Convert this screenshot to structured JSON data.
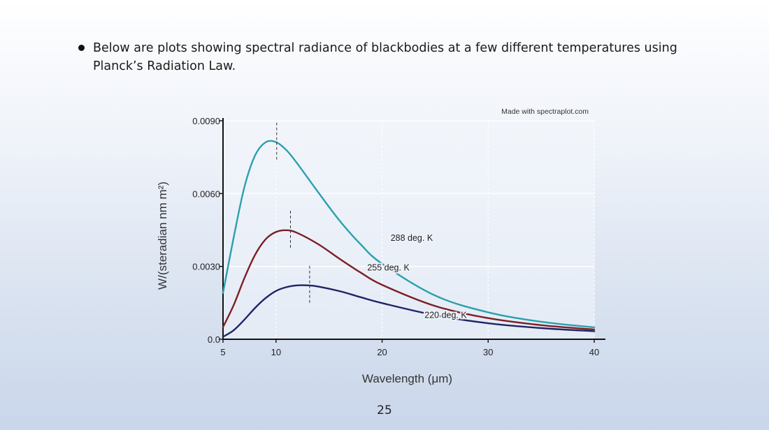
{
  "slide": {
    "bullet_text": "Below are plots showing spectral radiance of blackbodies at a few different temperatures using Planck’s Radiation Law.",
    "page_number": "25"
  },
  "chart_data": {
    "type": "line",
    "credit": "Made with spectraplot.com",
    "xlabel": "Wavelength (μm)",
    "ylabel": "W/(steradian nm m²)",
    "xlim": [
      5,
      40
    ],
    "ylim": [
      0,
      0.009
    ],
    "x_ticks": [
      5,
      10,
      20,
      30,
      40
    ],
    "y_ticks": [
      0,
      0.003,
      0.006,
      0.009
    ],
    "y_tick_labels": [
      "0.0",
      "0.0030",
      "0.0060",
      "0.0090"
    ],
    "grid": true,
    "series": [
      {
        "name": "288 deg. K",
        "color": "#2aa0ae",
        "temperature": 288,
        "peak_wavelength": 10.06,
        "x": [
          5,
          6,
          7,
          8,
          9,
          10,
          11,
          12,
          14,
          16,
          18,
          20,
          25,
          30,
          35,
          40
        ],
        "y": [
          0.00191,
          0.00418,
          0.00624,
          0.00755,
          0.00811,
          0.00812,
          0.00778,
          0.00724,
          0.00604,
          0.00488,
          0.0039,
          0.00311,
          0.0018,
          0.00111,
          0.00072,
          0.00049
        ]
      },
      {
        "name": "255 deg. K",
        "color": "#7c1f24",
        "temperature": 255,
        "peak_wavelength": 11.36,
        "x": [
          5,
          6,
          7,
          8,
          9,
          10,
          11,
          12,
          14,
          16,
          18,
          20,
          25,
          30,
          35,
          40
        ],
        "y": [
          0.0005,
          0.0014,
          0.0025,
          0.00346,
          0.00411,
          0.00442,
          0.00449,
          0.00438,
          0.00391,
          0.00331,
          0.00274,
          0.00224,
          0.00137,
          0.00087,
          0.00058,
          0.0004
        ]
      },
      {
        "name": "220 deg. K",
        "color": "#1f2466",
        "temperature": 220,
        "peak_wavelength": 13.17,
        "x": [
          5,
          6,
          7,
          8,
          9,
          10,
          11,
          12,
          13,
          14,
          16,
          18,
          20,
          25,
          30,
          35,
          40
        ],
        "y": [
          0.0001,
          0.00037,
          0.0008,
          0.00128,
          0.00169,
          0.00199,
          0.00215,
          0.00222,
          0.00222,
          0.00217,
          0.00198,
          0.00173,
          0.00149,
          0.00099,
          0.00066,
          0.00046,
          0.00033
        ]
      }
    ],
    "annotations": [
      {
        "text": "288 deg. K",
        "x": 20.8,
        "y": 0.00405
      },
      {
        "text": "255 deg. K",
        "x": 18.6,
        "y": 0.00283
      },
      {
        "text": "220 deg. K",
        "x": 24.0,
        "y": 0.00087
      }
    ]
  }
}
